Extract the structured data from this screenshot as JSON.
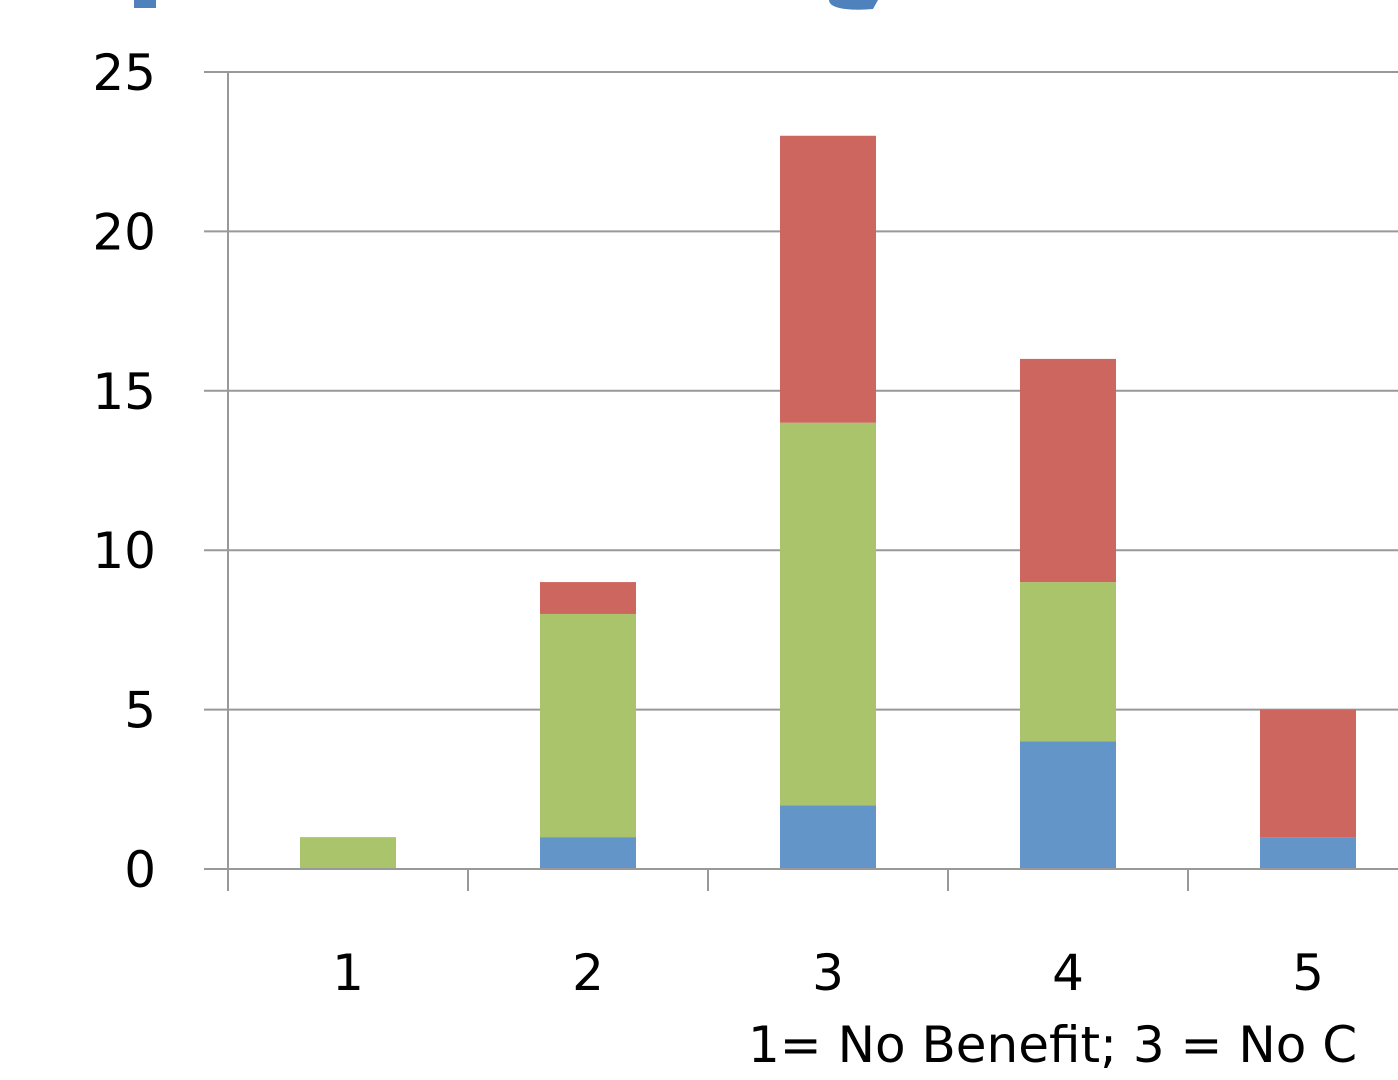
{
  "chart_data": {
    "type": "bar",
    "stacked": true,
    "categories": [
      "1",
      "2",
      "3",
      "4",
      "5"
    ],
    "series": [
      {
        "values": [
          0,
          1,
          2,
          4,
          1
        ],
        "color": "#6495C8"
      },
      {
        "values": [
          1,
          7,
          12,
          5,
          0
        ],
        "color": "#A9C46A"
      },
      {
        "values": [
          0,
          1,
          9,
          7,
          4
        ],
        "color": "#CC665E"
      }
    ],
    "xlabel": "1= No Benefit; 3 = No C",
    "ylim": [
      0,
      25
    ],
    "yticks": [
      0,
      5,
      10,
      15,
      20,
      25
    ],
    "grid": true,
    "colors": {
      "grid": "#999999",
      "axis": "#999999",
      "text": "#000000",
      "title_accent": "#4F81BD"
    }
  }
}
